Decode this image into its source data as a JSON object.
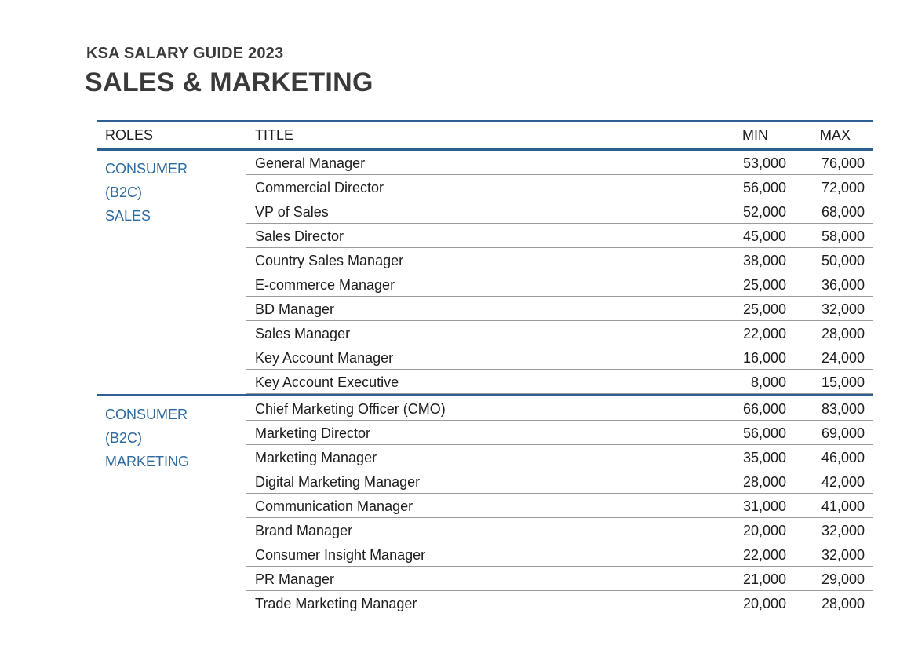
{
  "header": {
    "eyebrow": "KSA SALARY GUIDE 2023",
    "title": "SALES & MARKETING"
  },
  "table": {
    "columns": [
      "ROLES",
      "TITLE",
      "MIN",
      "MAX"
    ],
    "sections": [
      {
        "roles": [
          "CONSUMER",
          "(B2C)",
          "SALES"
        ],
        "rows": [
          {
            "title": "General Manager",
            "min": "53,000",
            "max": "76,000"
          },
          {
            "title": "Commercial Director",
            "min": "56,000",
            "max": "72,000"
          },
          {
            "title": "VP of Sales",
            "min": "52,000",
            "max": "68,000"
          },
          {
            "title": "Sales Director",
            "min": "45,000",
            "max": "58,000"
          },
          {
            "title": "Country Sales Manager",
            "min": "38,000",
            "max": "50,000"
          },
          {
            "title": "E-commerce Manager",
            "min": "25,000",
            "max": "36,000"
          },
          {
            "title": "BD Manager",
            "min": "25,000",
            "max": "32,000"
          },
          {
            "title": "Sales Manager",
            "min": "22,000",
            "max": "28,000"
          },
          {
            "title": "Key Account Manager",
            "min": "16,000",
            "max": "24,000"
          },
          {
            "title": "Key Account Executive",
            "min": "8,000",
            "max": "15,000"
          }
        ]
      },
      {
        "roles": [
          "CONSUMER",
          "(B2C)",
          "MARKETING"
        ],
        "rows": [
          {
            "title": "Chief Marketing Officer (CMO)",
            "min": "66,000",
            "max": "83,000"
          },
          {
            "title": "Marketing Director",
            "min": "56,000",
            "max": "69,000"
          },
          {
            "title": "Marketing Manager",
            "min": "35,000",
            "max": "46,000"
          },
          {
            "title": "Digital Marketing Manager",
            "min": "28,000",
            "max": "42,000"
          },
          {
            "title": "Communication Manager",
            "min": "31,000",
            "max": "41,000"
          },
          {
            "title": "Brand Manager",
            "min": "20,000",
            "max": "32,000"
          },
          {
            "title": "Consumer Insight Manager",
            "min": "22,000",
            "max": "32,000"
          },
          {
            "title": "PR Manager",
            "min": "21,000",
            "max": "29,000"
          },
          {
            "title": "Trade Marketing Manager",
            "min": "20,000",
            "max": "28,000"
          }
        ]
      }
    ]
  },
  "colors": {
    "accent": "#2e5f93",
    "roles_text": "#2e6a9e",
    "heading_text": "#3a3a3a"
  }
}
